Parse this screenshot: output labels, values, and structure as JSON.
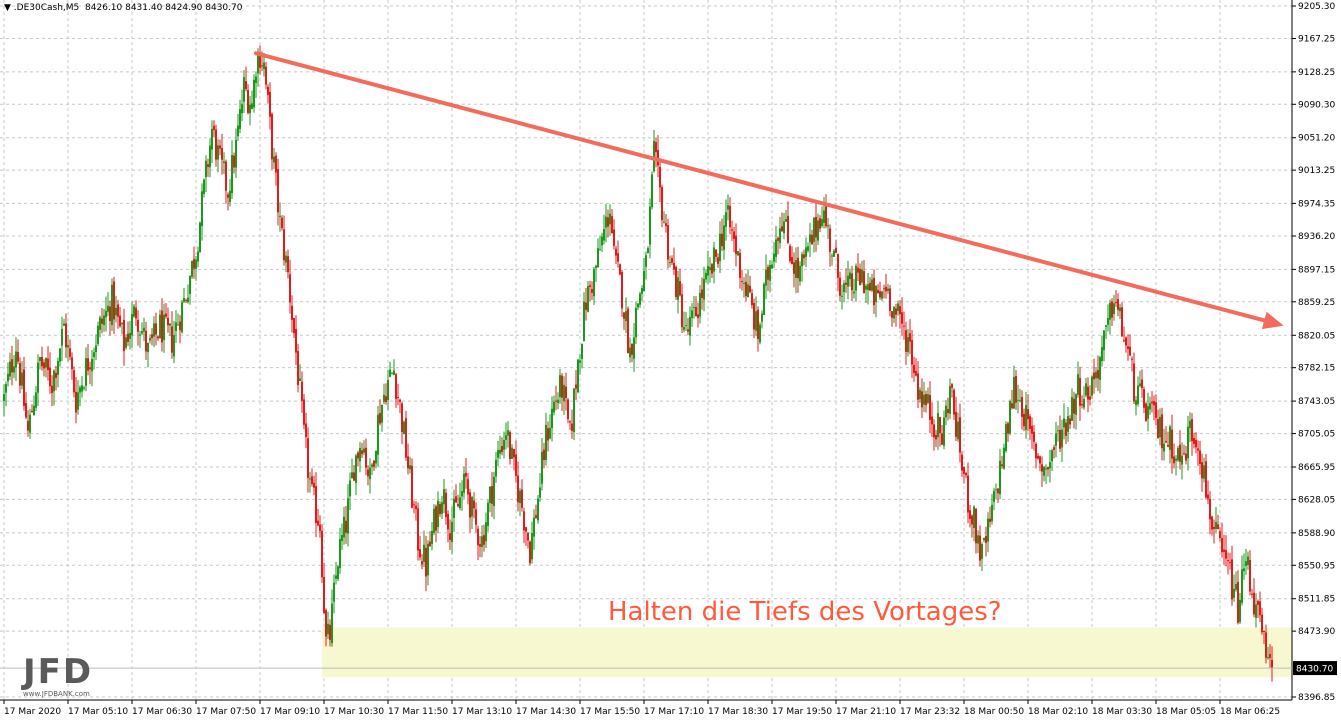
{
  "header": {
    "symbol": ".DE30Cash,M5",
    "ohlc": "8426.10 8431.40 8424.90 8430.70"
  },
  "annotation": {
    "text": "Halten die Tiefs des Vortages?",
    "color": "#ff5a3c"
  },
  "logo": {
    "brand": "JFD",
    "url": "www.JFDBANK.com"
  },
  "colors": {
    "bull": "#1a9a1a",
    "bear": "#e31b1b",
    "trendline": "#f26b5b",
    "support_zone": "#f7f7d0",
    "grid": "#c8c8c8",
    "axis_text": "#000000",
    "price_tag_bg": "#000000",
    "price_tag_text": "#ffffff"
  },
  "chart_data": {
    "type": "candlestick",
    "timeframe": "M5",
    "ylim": [
      8396.85,
      9205.3
    ],
    "y_ticks": [
      "9205.30",
      "9167.25",
      "9128.25",
      "9090.30",
      "9051.20",
      "9013.25",
      "8974.35",
      "8936.20",
      "8897.15",
      "8859.25",
      "8820.05",
      "8782.15",
      "8743.05",
      "8705.05",
      "8665.95",
      "8628.05",
      "8588.90",
      "8550.95",
      "8511.85",
      "8473.90",
      "8430.70",
      "8396.85"
    ],
    "x_labels": [
      "17 Mar 2020",
      "17 Mar 05:10",
      "17 Mar 06:30",
      "17 Mar 07:50",
      "17 Mar 09:10",
      "17 Mar 10:30",
      "17 Mar 11:50",
      "17 Mar 13:10",
      "17 Mar 14:30",
      "17 Mar 15:50",
      "17 Mar 17:10",
      "17 Mar 18:30",
      "17 Mar 19:50",
      "17 Mar 21:10",
      "17 Mar 23:32",
      "18 Mar 00:50",
      "18 Mar 02:10",
      "18 Mar 03:30",
      "18 Mar 05:05",
      "18 Mar 06:25"
    ],
    "current_price": "8430.70",
    "price_path": [
      [
        0,
        8745
      ],
      [
        6,
        8810
      ],
      [
        12,
        8705
      ],
      [
        18,
        8790
      ],
      [
        24,
        8765
      ],
      [
        30,
        8830
      ],
      [
        36,
        8745
      ],
      [
        42,
        8790
      ],
      [
        48,
        8830
      ],
      [
        54,
        8860
      ],
      [
        60,
        8810
      ],
      [
        66,
        8850
      ],
      [
        72,
        8800
      ],
      [
        78,
        8830
      ],
      [
        84,
        8815
      ],
      [
        90,
        8860
      ],
      [
        96,
        8920
      ],
      [
        100,
        8990
      ],
      [
        104,
        9060
      ],
      [
        108,
        9020
      ],
      [
        112,
        8990
      ],
      [
        116,
        9040
      ],
      [
        120,
        9110
      ],
      [
        124,
        9090
      ],
      [
        126,
        9140
      ],
      [
        128,
        9150
      ],
      [
        130,
        9135
      ],
      [
        134,
        9040
      ],
      [
        138,
        8950
      ],
      [
        142,
        8890
      ],
      [
        146,
        8800
      ],
      [
        150,
        8700
      ],
      [
        154,
        8630
      ],
      [
        158,
        8600
      ],
      [
        161,
        8460
      ],
      [
        163,
        8470
      ],
      [
        167,
        8560
      ],
      [
        171,
        8600
      ],
      [
        175,
        8670
      ],
      [
        179,
        8700
      ],
      [
        183,
        8650
      ],
      [
        187,
        8720
      ],
      [
        191,
        8760
      ],
      [
        195,
        8780
      ],
      [
        199,
        8720
      ],
      [
        203,
        8650
      ],
      [
        207,
        8580
      ],
      [
        211,
        8550
      ],
      [
        215,
        8600
      ],
      [
        219,
        8640
      ],
      [
        223,
        8600
      ],
      [
        227,
        8620
      ],
      [
        231,
        8650
      ],
      [
        235,
        8600
      ],
      [
        239,
        8580
      ],
      [
        243,
        8630
      ],
      [
        247,
        8680
      ],
      [
        251,
        8710
      ],
      [
        255,
        8660
      ],
      [
        259,
        8620
      ],
      [
        263,
        8570
      ],
      [
        267,
        8630
      ],
      [
        271,
        8700
      ],
      [
        275,
        8740
      ],
      [
        279,
        8760
      ],
      [
        283,
        8700
      ],
      [
        287,
        8790
      ],
      [
        291,
        8860
      ],
      [
        295,
        8890
      ],
      [
        299,
        8930
      ],
      [
        303,
        8970
      ],
      [
        305,
        8910
      ],
      [
        309,
        8870
      ],
      [
        313,
        8800
      ],
      [
        317,
        8860
      ],
      [
        321,
        8900
      ],
      [
        323,
        8960
      ],
      [
        325,
        9030
      ],
      [
        329,
        8970
      ],
      [
        333,
        8910
      ],
      [
        337,
        8870
      ],
      [
        341,
        8820
      ],
      [
        345,
        8840
      ],
      [
        349,
        8870
      ],
      [
        353,
        8890
      ],
      [
        357,
        8920
      ],
      [
        361,
        8960
      ],
      [
        365,
        8930
      ],
      [
        369,
        8890
      ],
      [
        373,
        8860
      ],
      [
        377,
        8820
      ],
      [
        381,
        8880
      ],
      [
        385,
        8930
      ],
      [
        389,
        8960
      ],
      [
        393,
        8920
      ],
      [
        397,
        8890
      ],
      [
        401,
        8910
      ],
      [
        405,
        8940
      ],
      [
        409,
        8970
      ],
      [
        413,
        8930
      ],
      [
        417,
        8890
      ],
      [
        421,
        8870
      ],
      [
        425,
        8880
      ],
      [
        429,
        8890
      ],
      [
        433,
        8870
      ],
      [
        437,
        8860
      ],
      [
        441,
        8880
      ],
      [
        445,
        8850
      ],
      [
        449,
        8830
      ],
      [
        453,
        8810
      ],
      [
        457,
        8760
      ],
      [
        461,
        8740
      ],
      [
        465,
        8720
      ],
      [
        469,
        8700
      ],
      [
        473,
        8760
      ],
      [
        477,
        8700
      ],
      [
        481,
        8640
      ],
      [
        485,
        8600
      ],
      [
        489,
        8560
      ],
      [
        493,
        8600
      ],
      [
        497,
        8650
      ],
      [
        501,
        8700
      ],
      [
        505,
        8760
      ],
      [
        509,
        8740
      ],
      [
        513,
        8700
      ],
      [
        517,
        8680
      ],
      [
        521,
        8660
      ],
      [
        525,
        8690
      ],
      [
        529,
        8710
      ],
      [
        533,
        8730
      ],
      [
        537,
        8760
      ],
      [
        541,
        8750
      ],
      [
        545,
        8770
      ],
      [
        549,
        8800
      ],
      [
        553,
        8840
      ],
      [
        555,
        8870
      ],
      [
        557,
        8845
      ],
      [
        561,
        8810
      ],
      [
        565,
        8760
      ],
      [
        569,
        8740
      ],
      [
        573,
        8730
      ],
      [
        577,
        8710
      ],
      [
        581,
        8700
      ],
      [
        585,
        8690
      ],
      [
        589,
        8670
      ],
      [
        593,
        8710
      ],
      [
        597,
        8700
      ],
      [
        601,
        8640
      ],
      [
        605,
        8590
      ],
      [
        609,
        8560
      ],
      [
        613,
        8540
      ],
      [
        617,
        8500
      ],
      [
        621,
        8560
      ],
      [
        625,
        8510
      ],
      [
        629,
        8470
      ],
      [
        632,
        8430
      ],
      [
        634,
        8430.7
      ]
    ],
    "trendline": {
      "from": [
        "17 Mar 07:50",
        9150
      ],
      "to": [
        "18 Mar 06:40",
        8835
      ]
    },
    "support_zone": {
      "from_price": 8420,
      "to_price": 8478
    }
  }
}
